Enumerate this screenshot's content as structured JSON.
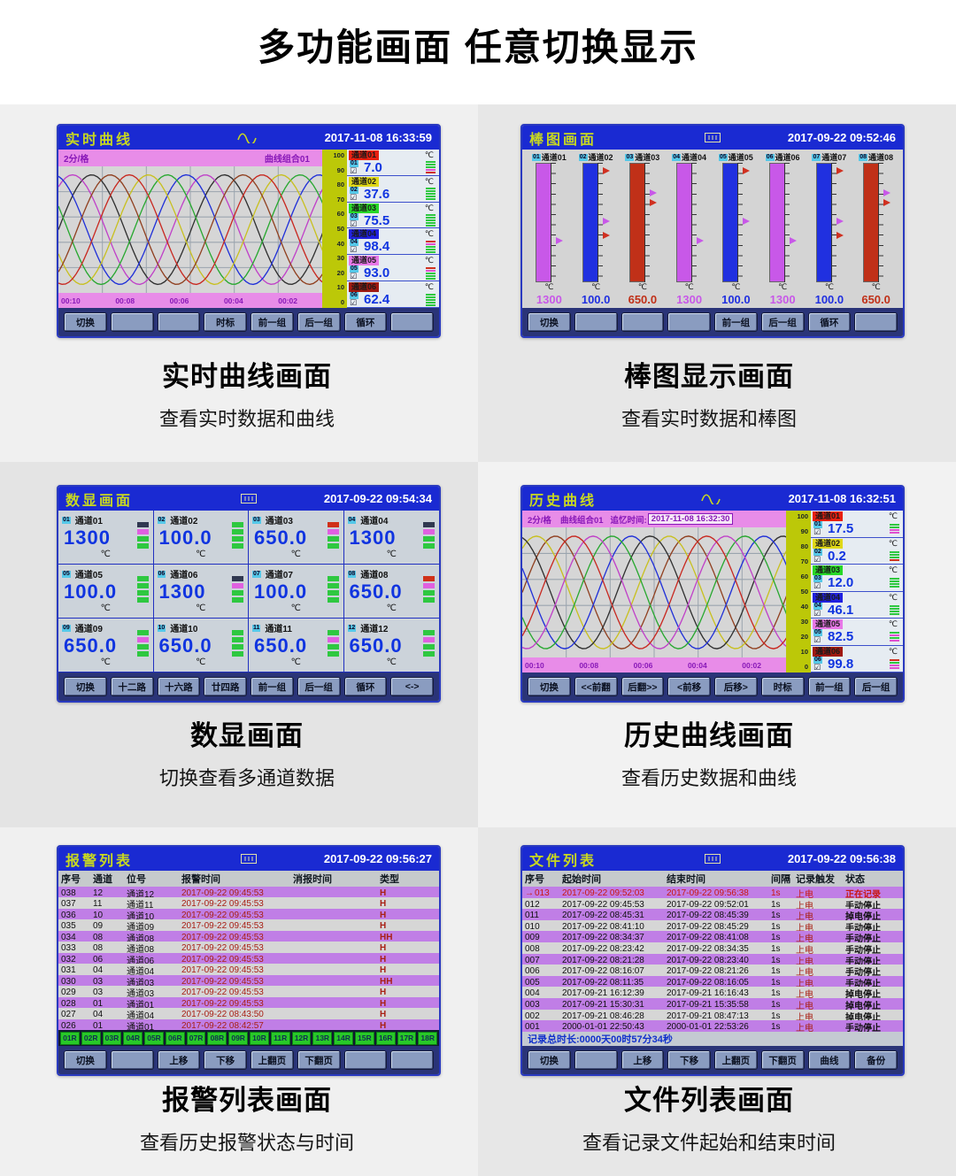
{
  "header": {
    "title": "多功能画面 任意切换显示"
  },
  "panels": [
    {
      "type": "curve",
      "title": "实时曲线",
      "datetime": "2017-11-08 16:33:59",
      "interval": "2分/格",
      "group": "曲线组合01",
      "time_ticks": [
        "00:10",
        "00:08",
        "00:06",
        "00:04",
        "00:02"
      ],
      "scale_ticks": [
        "100",
        "90",
        "80",
        "70",
        "60",
        "50",
        "40",
        "30",
        "20",
        "10",
        "0"
      ],
      "curve_colors": [
        "#303030",
        "#c040c8",
        "#2030d8",
        "#28a830",
        "#c8c020",
        "#c82820",
        "#904020"
      ],
      "channels": [
        {
          "no": "01",
          "name": "通道01",
          "unit": "℃",
          "value": "7.0",
          "chip": "#e82010",
          "bars": [
            "#2ec840",
            "#2ec840",
            "#2ec840",
            "#e050d0",
            "#d03020"
          ]
        },
        {
          "no": "02",
          "name": "通道02",
          "unit": "℃",
          "value": "37.6",
          "chip": "#e0d818",
          "bars": [
            "#2ec840",
            "#2ec840",
            "#2ec840",
            "#2ec840",
            "#2ec840"
          ]
        },
        {
          "no": "03",
          "name": "通道03",
          "unit": "℃",
          "value": "75.5",
          "chip": "#28d828",
          "bars": [
            "#2ec840",
            "#2ec840",
            "#2ec840",
            "#2ec840",
            "#2ec840"
          ]
        },
        {
          "no": "04",
          "name": "通道04",
          "unit": "℃",
          "value": "98.4",
          "chip": "#2020e0",
          "bars": [
            "#d03020",
            "#e050d0",
            "#2ec840",
            "#2ec840",
            "#2ec840"
          ]
        },
        {
          "no": "05",
          "name": "通道05",
          "unit": "℃",
          "value": "93.0",
          "chip": "#e878e8",
          "bars": [
            "#d03020",
            "#e050d0",
            "#2ec840",
            "#2ec840",
            "#2ec840"
          ]
        },
        {
          "no": "06",
          "name": "通道06",
          "unit": "℃",
          "value": "62.4",
          "chip": "#a01810",
          "bars": [
            "#2ec840",
            "#2ec840",
            "#2ec840",
            "#2ec840",
            "#2ec840"
          ]
        }
      ],
      "buttons": [
        "切换",
        "",
        "",
        "时标",
        "前一组",
        "后一组",
        "循环",
        ""
      ],
      "caption": {
        "title": "实时曲线画面",
        "sub": "查看实时数据和曲线"
      }
    },
    {
      "type": "bars",
      "title": "棒图画面",
      "datetime": "2017-09-22 09:52:46",
      "bars": [
        {
          "no": "01",
          "name": "通道01",
          "unit": "℃",
          "value": "1300",
          "color": "#c858e8",
          "markers": [
            {
              "c": "#c858e8",
              "p": 62
            }
          ]
        },
        {
          "no": "02",
          "name": "通道02",
          "unit": "℃",
          "value": "100.0",
          "color": "#2030e0",
          "markers": [
            {
              "c": "#d03020",
              "p": 4
            },
            {
              "c": "#c858e8",
              "p": 46
            },
            {
              "c": "#d03020",
              "p": 58
            }
          ]
        },
        {
          "no": "03",
          "name": "通道03",
          "unit": "℃",
          "value": "650.0",
          "color": "#c03018",
          "markers": [
            {
              "c": "#c858e8",
              "p": 22
            },
            {
              "c": "#d03020",
              "p": 30
            }
          ]
        },
        {
          "no": "04",
          "name": "通道04",
          "unit": "℃",
          "value": "1300",
          "color": "#c858e8",
          "markers": [
            {
              "c": "#c858e8",
              "p": 62
            }
          ]
        },
        {
          "no": "05",
          "name": "通道05",
          "unit": "℃",
          "value": "100.0",
          "color": "#2030e0",
          "markers": [
            {
              "c": "#d03020",
              "p": 4
            },
            {
              "c": "#c858e8",
              "p": 46
            }
          ]
        },
        {
          "no": "06",
          "name": "通道06",
          "unit": "℃",
          "value": "1300",
          "color": "#c858e8",
          "markers": [
            {
              "c": "#c858e8",
              "p": 62
            }
          ]
        },
        {
          "no": "07",
          "name": "通道07",
          "unit": "℃",
          "value": "100.0",
          "color": "#2030e0",
          "markers": [
            {
              "c": "#d03020",
              "p": 4
            },
            {
              "c": "#c858e8",
              "p": 46
            },
            {
              "c": "#d03020",
              "p": 58
            }
          ]
        },
        {
          "no": "08",
          "name": "通道08",
          "unit": "℃",
          "value": "650.0",
          "color": "#c03018",
          "markers": [
            {
              "c": "#c858e8",
              "p": 22
            },
            {
              "c": "#d03020",
              "p": 30
            }
          ]
        }
      ],
      "buttons": [
        "切换",
        "",
        "",
        "",
        "前一组",
        "后一组",
        "循环",
        ""
      ],
      "caption": {
        "title": "棒图显示画面",
        "sub": "查看实时数据和棒图"
      }
    },
    {
      "type": "digits",
      "title": "数显画面",
      "datetime": "2017-09-22 09:54:34",
      "cells": [
        {
          "no": "01",
          "name": "通道01",
          "value": "1300",
          "unit": "℃",
          "lights": [
            "#303850",
            "#e060e0",
            "#2ec840",
            "#2ec840"
          ]
        },
        {
          "no": "02",
          "name": "通道02",
          "value": "100.0",
          "unit": "℃",
          "lights": [
            "#2ec840",
            "#2ec840",
            "#2ec840",
            "#2ec840"
          ]
        },
        {
          "no": "03",
          "name": "通道03",
          "value": "650.0",
          "unit": "℃",
          "lights": [
            "#d03018",
            "#e060e0",
            "#2ec840",
            "#2ec840"
          ]
        },
        {
          "no": "04",
          "name": "通道04",
          "value": "1300",
          "unit": "℃",
          "lights": [
            "#303850",
            "#e060e0",
            "#2ec840",
            "#2ec840"
          ]
        },
        {
          "no": "05",
          "name": "通道05",
          "value": "100.0",
          "unit": "℃",
          "lights": [
            "#2ec840",
            "#2ec840",
            "#2ec840",
            "#2ec840"
          ]
        },
        {
          "no": "06",
          "name": "通道06",
          "value": "1300",
          "unit": "℃",
          "lights": [
            "#303850",
            "#e060e0",
            "#2ec840",
            "#2ec840"
          ]
        },
        {
          "no": "07",
          "name": "通道07",
          "value": "100.0",
          "unit": "℃",
          "lights": [
            "#2ec840",
            "#2ec840",
            "#2ec840",
            "#2ec840"
          ]
        },
        {
          "no": "08",
          "name": "通道08",
          "value": "650.0",
          "unit": "℃",
          "lights": [
            "#d03018",
            "#e060e0",
            "#2ec840",
            "#2ec840"
          ]
        },
        {
          "no": "09",
          "name": "通道09",
          "value": "650.0",
          "unit": "℃",
          "lights": [
            "#2ec840",
            "#e060e0",
            "#2ec840",
            "#2ec840"
          ]
        },
        {
          "no": "10",
          "name": "通道10",
          "value": "650.0",
          "unit": "℃",
          "lights": [
            "#2ec840",
            "#2ec840",
            "#2ec840",
            "#2ec840"
          ]
        },
        {
          "no": "11",
          "name": "通道11",
          "value": "650.0",
          "unit": "℃",
          "lights": [
            "#2ec840",
            "#e060e0",
            "#2ec840",
            "#2ec840"
          ]
        },
        {
          "no": "12",
          "name": "通道12",
          "value": "650.0",
          "unit": "℃",
          "lights": [
            "#2ec840",
            "#e060e0",
            "#2ec840",
            "#2ec840"
          ]
        }
      ],
      "buttons": [
        "切换",
        "十二路",
        "十六路",
        "廿四路",
        "前一组",
        "后一组",
        "循环",
        "<->"
      ],
      "caption": {
        "title": "数显画面",
        "sub": "切换查看多通道数据"
      }
    },
    {
      "type": "curve",
      "title": "历史曲线",
      "datetime": "2017-11-08 16:32:51",
      "interval": "2分/格",
      "group": "曲线组合01",
      "recall_label": "追忆时间:",
      "recall_value": "2017-11-08 16:32:30",
      "time_ticks": [
        "00:10",
        "00:08",
        "00:06",
        "00:04",
        "00:02"
      ],
      "scale_ticks": [
        "100",
        "90",
        "80",
        "70",
        "60",
        "50",
        "40",
        "30",
        "20",
        "10",
        "0"
      ],
      "curve_colors": [
        "#904020",
        "#c8c020",
        "#303030",
        "#2030d8",
        "#28a830",
        "#c040c8",
        "#c82820"
      ],
      "channels": [
        {
          "no": "01",
          "name": "通道01",
          "unit": "℃",
          "value": "17.5",
          "chip": "#e82010",
          "bars": [
            "#2ec840",
            "#2ec840",
            "#e050d0",
            "#e050d0"
          ]
        },
        {
          "no": "02",
          "name": "通道02",
          "unit": "℃",
          "value": "0.2",
          "chip": "#e0d818",
          "bars": [
            "#2ec840",
            "#2ec840",
            "#2ec840",
            "#d03020"
          ]
        },
        {
          "no": "03",
          "name": "通道03",
          "unit": "℃",
          "value": "12.0",
          "chip": "#28d828",
          "bars": [
            "#2ec840",
            "#2ec840",
            "#2ec840",
            "#2ec840"
          ]
        },
        {
          "no": "04",
          "name": "通道04",
          "unit": "℃",
          "value": "46.1",
          "chip": "#2020e0",
          "bars": [
            "#2ec840",
            "#2ec840",
            "#2ec840",
            "#2ec840"
          ]
        },
        {
          "no": "05",
          "name": "通道05",
          "unit": "℃",
          "value": "82.5",
          "chip": "#e878e8",
          "bars": [
            "#2ec840",
            "#e050d0",
            "#2ec840",
            "#e050d0"
          ]
        },
        {
          "no": "06",
          "name": "通道06",
          "unit": "℃",
          "value": "99.8",
          "chip": "#a01810",
          "bars": [
            "#d03020",
            "#2ec840",
            "#e050d0",
            "#e050d0"
          ]
        }
      ],
      "buttons": [
        "切换",
        "<<前翻",
        "后翻>>",
        "<前移",
        "后移>",
        "时标",
        "前一组",
        "后一组"
      ],
      "caption": {
        "title": "历史曲线画面",
        "sub": "查看历史数据和曲线"
      }
    },
    {
      "type": "alarm",
      "title": "报警列表",
      "datetime": "2017-09-22 09:56:27",
      "columns": [
        "序号",
        "通道",
        "位号",
        "报警时间",
        "消报时间",
        "类型"
      ],
      "rows": [
        [
          "038",
          "12",
          "通道12",
          "2017-09-22 09:45:53",
          "",
          "H"
        ],
        [
          "037",
          "11",
          "通道11",
          "2017-09-22 09:45:53",
          "",
          "H"
        ],
        [
          "036",
          "10",
          "通道10",
          "2017-09-22 09:45:53",
          "",
          "H"
        ],
        [
          "035",
          "09",
          "通道09",
          "2017-09-22 09:45:53",
          "",
          "H"
        ],
        [
          "034",
          "08",
          "通道08",
          "2017-09-22 09:45:53",
          "",
          "HH"
        ],
        [
          "033",
          "08",
          "通道08",
          "2017-09-22 09:45:53",
          "",
          "H"
        ],
        [
          "032",
          "06",
          "通道06",
          "2017-09-22 09:45:53",
          "",
          "H"
        ],
        [
          "031",
          "04",
          "通道04",
          "2017-09-22 09:45:53",
          "",
          "H"
        ],
        [
          "030",
          "03",
          "通道03",
          "2017-09-22 09:45:53",
          "",
          "HH"
        ],
        [
          "029",
          "03",
          "通道03",
          "2017-09-22 09:45:53",
          "",
          "H"
        ],
        [
          "028",
          "01",
          "通道01",
          "2017-09-22 09:45:53",
          "",
          "H"
        ],
        [
          "027",
          "04",
          "通道04",
          "2017-09-22 08:43:50",
          "",
          "H"
        ],
        [
          "026",
          "01",
          "通道01",
          "2017-09-22 08:42:57",
          "",
          "H"
        ]
      ],
      "relays": [
        "01R",
        "02R",
        "03R",
        "04R",
        "05R",
        "06R",
        "07R",
        "08R",
        "09R",
        "10R",
        "11R",
        "12R",
        "13R",
        "14R",
        "15R",
        "16R",
        "17R",
        "18R"
      ],
      "buttons": [
        "切换",
        "",
        "上移",
        "下移",
        "上翻页",
        "下翻页",
        "",
        ""
      ],
      "caption": {
        "title": "报警列表画面",
        "sub": "查看历史报警状态与时间"
      }
    },
    {
      "type": "files",
      "title": "文件列表",
      "datetime": "2017-09-22 09:56:38",
      "columns": [
        "序号",
        "起始时间",
        "结束时间",
        "间隔",
        "记录触发",
        "状态"
      ],
      "active_marker": "→",
      "rows": [
        [
          "013",
          "2017-09-22 09:52:03",
          "2017-09-22 09:56:38",
          "1s",
          "上电",
          "正在记录"
        ],
        [
          "012",
          "2017-09-22 09:45:53",
          "2017-09-22 09:52:01",
          "1s",
          "上电",
          "手动停止"
        ],
        [
          "011",
          "2017-09-22 08:45:31",
          "2017-09-22 08:45:39",
          "1s",
          "上电",
          "掉电停止"
        ],
        [
          "010",
          "2017-09-22 08:41:10",
          "2017-09-22 08:45:29",
          "1s",
          "上电",
          "手动停止"
        ],
        [
          "009",
          "2017-09-22 08:34:37",
          "2017-09-22 08:41:08",
          "1s",
          "上电",
          "手动停止"
        ],
        [
          "008",
          "2017-09-22 08:23:42",
          "2017-09-22 08:34:35",
          "1s",
          "上电",
          "手动停止"
        ],
        [
          "007",
          "2017-09-22 08:21:28",
          "2017-09-22 08:23:40",
          "1s",
          "上电",
          "手动停止"
        ],
        [
          "006",
          "2017-09-22 08:16:07",
          "2017-09-22 08:21:26",
          "1s",
          "上电",
          "手动停止"
        ],
        [
          "005",
          "2017-09-22 08:11:35",
          "2017-09-22 08:16:05",
          "1s",
          "上电",
          "手动停止"
        ],
        [
          "004",
          "2017-09-21 16:12:39",
          "2017-09-21 16:16:43",
          "1s",
          "上电",
          "掉电停止"
        ],
        [
          "003",
          "2017-09-21 15:30:31",
          "2017-09-21 15:35:58",
          "1s",
          "上电",
          "掉电停止"
        ],
        [
          "002",
          "2017-09-21 08:46:28",
          "2017-09-21 08:47:13",
          "1s",
          "上电",
          "掉电停止"
        ],
        [
          "001",
          "2000-01-01 22:50:43",
          "2000-01-01 22:53:26",
          "1s",
          "上电",
          "手动停止"
        ]
      ],
      "footer": "记录总时长:0000天00时57分34秒",
      "buttons": [
        "切换",
        "",
        "上移",
        "下移",
        "上翻页",
        "下翻页",
        "曲线",
        "备份"
      ],
      "caption": {
        "title": "文件列表画面",
        "sub": "查看记录文件起始和结束时间"
      }
    }
  ]
}
